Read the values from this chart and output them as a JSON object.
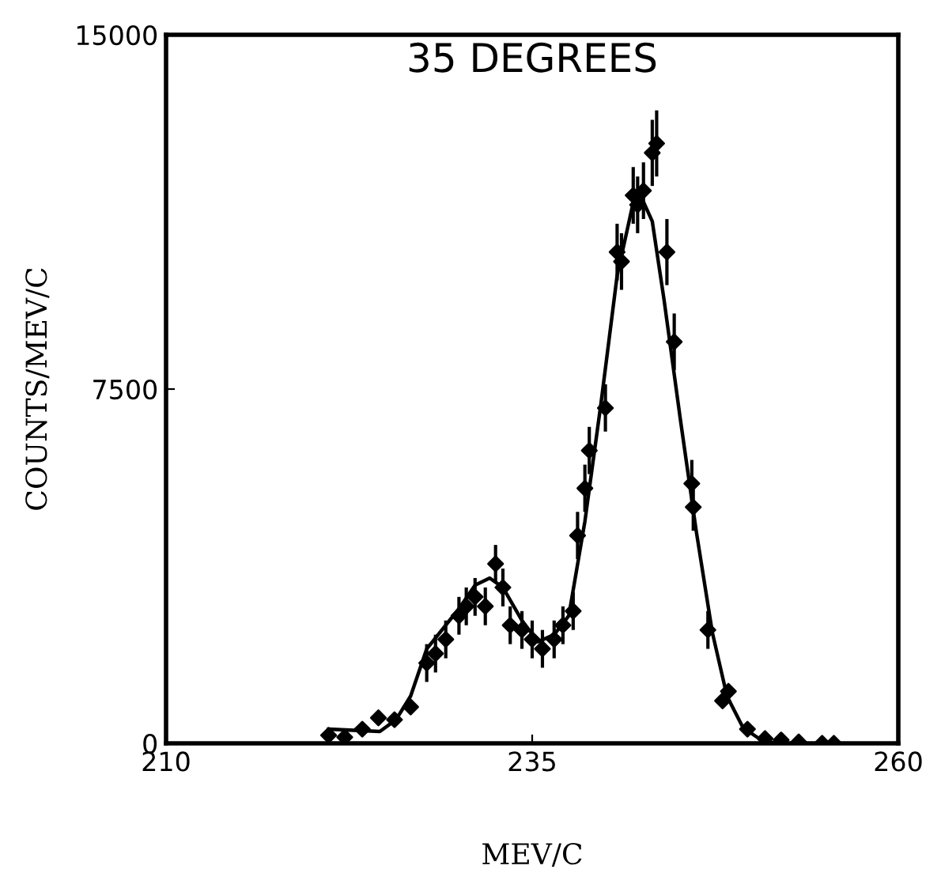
{
  "chart_data": {
    "type": "scatter",
    "title": "35 DEGREES",
    "xlabel": "MEV/C",
    "ylabel": "COUNTS/MEV/C",
    "xlim": [
      210,
      260
    ],
    "xticks": [
      210,
      235,
      260
    ],
    "ylim": [
      0,
      15000
    ],
    "yticks": [
      0,
      7500,
      15000
    ],
    "grid": false,
    "series": [
      {
        "marker": "diamond",
        "color": "#000000",
        "x": [
          221.1,
          222.2,
          223.4,
          224.5,
          225.6,
          226.7,
          227.8,
          228.4,
          229.1,
          230.0,
          230.5,
          231.1,
          231.8,
          232.5,
          233.0,
          233.5,
          234.3,
          235.0,
          235.7,
          236.5,
          237.1,
          237.8,
          238.1,
          238.6,
          238.9,
          240.0,
          240.8,
          241.1,
          241.9,
          242.2,
          242.6,
          243.2,
          243.5,
          244.2,
          244.7,
          245.9,
          246.0,
          247.0,
          248.0,
          248.4,
          249.7,
          250.9,
          252.0,
          253.2,
          254.8,
          255.6
        ],
        "values": [
          170,
          130,
          300,
          540,
          500,
          770,
          1700,
          1900,
          2200,
          2700,
          2900,
          3100,
          2900,
          3800,
          3300,
          2500,
          2400,
          2200,
          2000,
          2200,
          2500,
          2800,
          4400,
          5400,
          6200,
          7100,
          10400,
          10200,
          11600,
          11400,
          11700,
          12500,
          12700,
          10400,
          8500,
          5500,
          5000,
          2400,
          900,
          1100,
          300,
          100,
          70,
          30,
          0,
          0
        ],
        "errors": [
          null,
          null,
          null,
          null,
          null,
          null,
          400,
          400,
          400,
          400,
          400,
          400,
          400,
          400,
          400,
          400,
          400,
          400,
          400,
          400,
          400,
          400,
          500,
          500,
          500,
          500,
          600,
          600,
          600,
          600,
          600,
          700,
          700,
          700,
          600,
          500,
          500,
          400,
          null,
          null,
          null,
          null,
          null,
          null,
          null,
          null
        ]
      },
      {
        "type": "line",
        "marker": "none",
        "color": "#000000",
        "x": [
          221.1,
          224.6,
          225.7,
          226.7,
          227.8,
          230.0,
          231.1,
          232.1,
          233.0,
          234.3,
          235.4,
          236.5,
          237.5,
          238.6,
          239.7,
          240.8,
          241.9,
          242.4,
          243.2,
          244.0,
          245.1,
          246.2,
          247.3,
          248.3,
          249.4,
          250.5,
          251.6
        ],
        "values": [
          300,
          250,
          500,
          1000,
          2000,
          2850,
          3350,
          3500,
          3300,
          2600,
          2150,
          2300,
          2700,
          4700,
          7200,
          9900,
          11450,
          11600,
          11050,
          9400,
          6900,
          4500,
          2350,
          1000,
          330,
          100,
          0
        ]
      }
    ]
  }
}
